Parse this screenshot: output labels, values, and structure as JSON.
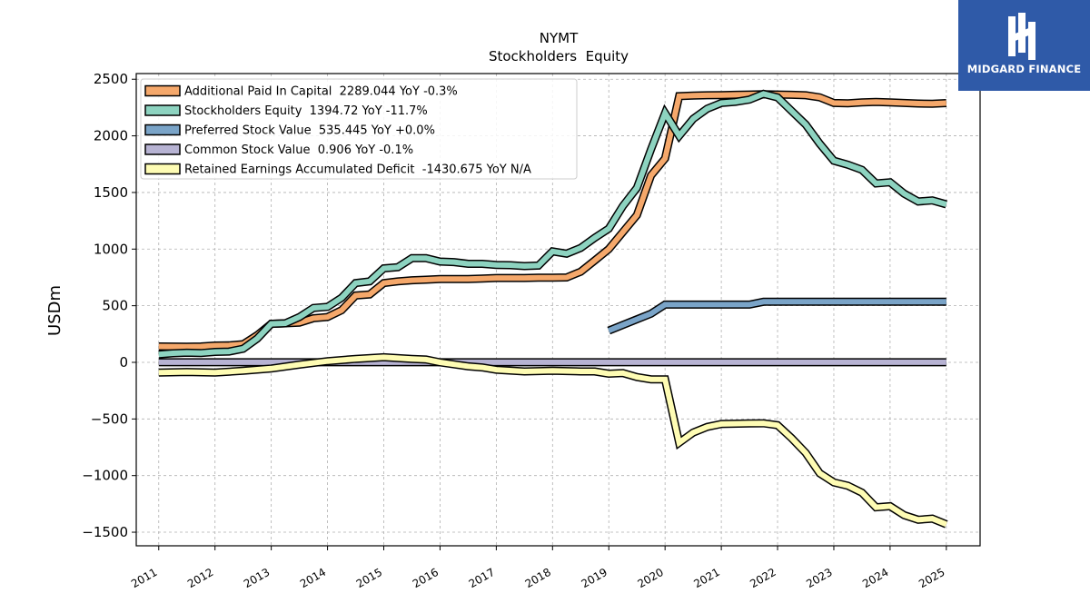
{
  "brand": {
    "name": "MIDGARD FINANCE"
  },
  "chart_data": {
    "type": "line",
    "title": "NYMT",
    "subtitle": "Stockholders  Equity",
    "ylabel": "USDm",
    "xlabel": "",
    "xlim": [
      2010.6,
      2025.6
    ],
    "ylim": [
      -1620,
      2550
    ],
    "yticks": [
      -1500,
      -1000,
      -500,
      0,
      500,
      1000,
      1500,
      2000,
      2500
    ],
    "ytick_labels": [
      "−1500",
      "−1000",
      "−500",
      "0",
      "500",
      "1000",
      "1500",
      "2000",
      "2500"
    ],
    "xticks": [
      2011,
      2012,
      2013,
      2014,
      2015,
      2016,
      2017,
      2018,
      2019,
      2020,
      2021,
      2022,
      2023,
      2024,
      2025
    ],
    "xtick_labels": [
      "2011",
      "2012",
      "2013",
      "2014",
      "2015",
      "2016",
      "2017",
      "2018",
      "2019",
      "2020",
      "2021",
      "2022",
      "2023",
      "2024",
      "2025"
    ],
    "grid": true,
    "legend_position": "top-left",
    "series": [
      {
        "name": "Additional Paid In Capital",
        "legend": "Additional Paid In Capital  2289.044 YoY -0.3%",
        "color": "#f5a86b",
        "points": [
          [
            2011.0,
            140
          ],
          [
            2011.5,
            138
          ],
          [
            2011.75,
            140
          ],
          [
            2012.0,
            148
          ],
          [
            2012.25,
            150
          ],
          [
            2012.5,
            160
          ],
          [
            2012.75,
            240
          ],
          [
            2013.0,
            340
          ],
          [
            2013.25,
            345
          ],
          [
            2013.5,
            350
          ],
          [
            2013.75,
            390
          ],
          [
            2014.0,
            400
          ],
          [
            2014.25,
            460
          ],
          [
            2014.5,
            590
          ],
          [
            2014.75,
            600
          ],
          [
            2015.0,
            700
          ],
          [
            2015.25,
            715
          ],
          [
            2015.5,
            725
          ],
          [
            2015.75,
            730
          ],
          [
            2016.0,
            735
          ],
          [
            2016.5,
            735
          ],
          [
            2016.75,
            740
          ],
          [
            2017.0,
            745
          ],
          [
            2017.25,
            745
          ],
          [
            2017.5,
            745
          ],
          [
            2017.75,
            748
          ],
          [
            2018.0,
            748
          ],
          [
            2018.25,
            750
          ],
          [
            2018.5,
            800
          ],
          [
            2018.75,
            900
          ],
          [
            2019.0,
            1000
          ],
          [
            2019.25,
            1150
          ],
          [
            2019.5,
            1300
          ],
          [
            2019.75,
            1650
          ],
          [
            2020.0,
            1800
          ],
          [
            2020.25,
            2350
          ],
          [
            2020.5,
            2355
          ],
          [
            2020.75,
            2358
          ],
          [
            2021.0,
            2360
          ],
          [
            2021.25,
            2362
          ],
          [
            2021.5,
            2365
          ],
          [
            2021.75,
            2368
          ],
          [
            2022.0,
            2365
          ],
          [
            2022.25,
            2362
          ],
          [
            2022.5,
            2358
          ],
          [
            2022.75,
            2340
          ],
          [
            2023.0,
            2290
          ],
          [
            2023.25,
            2288
          ],
          [
            2023.5,
            2295
          ],
          [
            2023.75,
            2300
          ],
          [
            2024.0,
            2295
          ],
          [
            2024.25,
            2290
          ],
          [
            2024.5,
            2285
          ],
          [
            2024.75,
            2283
          ],
          [
            2025.0,
            2289
          ]
        ]
      },
      {
        "name": "Stockholders Equity",
        "legend": "Stockholders Equity  1394.72 YoY -11.7%",
        "color": "#8dd3c0",
        "points": [
          [
            2011.0,
            70
          ],
          [
            2011.25,
            80
          ],
          [
            2011.5,
            85
          ],
          [
            2011.75,
            82
          ],
          [
            2012.0,
            92
          ],
          [
            2012.25,
            95
          ],
          [
            2012.5,
            120
          ],
          [
            2012.75,
            210
          ],
          [
            2013.0,
            340
          ],
          [
            2013.25,
            345
          ],
          [
            2013.5,
            400
          ],
          [
            2013.75,
            480
          ],
          [
            2014.0,
            490
          ],
          [
            2014.25,
            570
          ],
          [
            2014.5,
            700
          ],
          [
            2014.75,
            715
          ],
          [
            2015.0,
            830
          ],
          [
            2015.25,
            840
          ],
          [
            2015.5,
            920
          ],
          [
            2015.75,
            920
          ],
          [
            2016.0,
            890
          ],
          [
            2016.25,
            885
          ],
          [
            2016.5,
            870
          ],
          [
            2016.75,
            870
          ],
          [
            2017.0,
            860
          ],
          [
            2017.25,
            858
          ],
          [
            2017.5,
            850
          ],
          [
            2017.75,
            855
          ],
          [
            2018.0,
            980
          ],
          [
            2018.25,
            960
          ],
          [
            2018.5,
            1010
          ],
          [
            2018.75,
            1100
          ],
          [
            2019.0,
            1180
          ],
          [
            2019.25,
            1380
          ],
          [
            2019.5,
            1540
          ],
          [
            2019.75,
            1880
          ],
          [
            2020.0,
            2200
          ],
          [
            2020.25,
            2000
          ],
          [
            2020.5,
            2150
          ],
          [
            2020.75,
            2240
          ],
          [
            2021.0,
            2290
          ],
          [
            2021.25,
            2300
          ],
          [
            2021.5,
            2320
          ],
          [
            2021.75,
            2370
          ],
          [
            2022.0,
            2340
          ],
          [
            2022.25,
            2220
          ],
          [
            2022.5,
            2100
          ],
          [
            2022.75,
            1930
          ],
          [
            2023.0,
            1780
          ],
          [
            2023.25,
            1745
          ],
          [
            2023.5,
            1700
          ],
          [
            2023.75,
            1580
          ],
          [
            2024.0,
            1590
          ],
          [
            2024.25,
            1490
          ],
          [
            2024.5,
            1420
          ],
          [
            2024.75,
            1430
          ],
          [
            2025.0,
            1395
          ]
        ]
      },
      {
        "name": "Preferred Stock Value",
        "legend": "Preferred Stock Value  535.445 YoY +0.0%",
        "color": "#7aa4c8",
        "points": [
          [
            2019.0,
            280
          ],
          [
            2019.25,
            330
          ],
          [
            2019.5,
            380
          ],
          [
            2019.75,
            430
          ],
          [
            2020.0,
            510
          ],
          [
            2020.25,
            510
          ],
          [
            2020.5,
            510
          ],
          [
            2020.75,
            510
          ],
          [
            2021.0,
            510
          ],
          [
            2021.25,
            510
          ],
          [
            2021.5,
            510
          ],
          [
            2021.75,
            535
          ],
          [
            2022.0,
            535
          ],
          [
            2022.5,
            535
          ],
          [
            2023.0,
            535
          ],
          [
            2023.5,
            535
          ],
          [
            2024.0,
            535
          ],
          [
            2024.5,
            535
          ],
          [
            2025.0,
            535
          ]
        ]
      },
      {
        "name": "Common Stock Value",
        "legend": "Common Stock Value  0.906 YoY -0.1%",
        "color": "#b7b3d3",
        "points": [
          [
            2011.0,
            1
          ],
          [
            2012.0,
            1
          ],
          [
            2013.0,
            1
          ],
          [
            2014.0,
            1
          ],
          [
            2015.0,
            1
          ],
          [
            2016.0,
            1
          ],
          [
            2017.0,
            1
          ],
          [
            2018.0,
            1
          ],
          [
            2019.0,
            1
          ],
          [
            2020.0,
            1
          ],
          [
            2021.0,
            1
          ],
          [
            2022.0,
            1
          ],
          [
            2023.0,
            1
          ],
          [
            2024.0,
            1
          ],
          [
            2025.0,
            1
          ]
        ]
      },
      {
        "name": "Retained Earnings Accumulated Deficit",
        "legend": "Retained Earnings Accumulated Deficit  -1430.675 YoY N/A",
        "color": "#fefcb4",
        "points": [
          [
            2011.0,
            -90
          ],
          [
            2011.5,
            -85
          ],
          [
            2012.0,
            -90
          ],
          [
            2012.5,
            -75
          ],
          [
            2013.0,
            -55
          ],
          [
            2013.5,
            -20
          ],
          [
            2014.0,
            10
          ],
          [
            2014.5,
            30
          ],
          [
            2015.0,
            45
          ],
          [
            2015.5,
            30
          ],
          [
            2015.75,
            25
          ],
          [
            2016.0,
            0
          ],
          [
            2016.5,
            -35
          ],
          [
            2016.75,
            -45
          ],
          [
            2017.0,
            -65
          ],
          [
            2017.5,
            -80
          ],
          [
            2018.0,
            -75
          ],
          [
            2018.5,
            -80
          ],
          [
            2018.75,
            -80
          ],
          [
            2019.0,
            -100
          ],
          [
            2019.25,
            -95
          ],
          [
            2019.5,
            -130
          ],
          [
            2019.75,
            -150
          ],
          [
            2020.0,
            -150
          ],
          [
            2020.25,
            -710
          ],
          [
            2020.5,
            -620
          ],
          [
            2020.75,
            -570
          ],
          [
            2021.0,
            -545
          ],
          [
            2021.5,
            -540
          ],
          [
            2021.75,
            -538
          ],
          [
            2022.0,
            -555
          ],
          [
            2022.25,
            -670
          ],
          [
            2022.5,
            -800
          ],
          [
            2022.75,
            -980
          ],
          [
            2023.0,
            -1060
          ],
          [
            2023.25,
            -1090
          ],
          [
            2023.5,
            -1150
          ],
          [
            2023.75,
            -1280
          ],
          [
            2024.0,
            -1270
          ],
          [
            2024.25,
            -1350
          ],
          [
            2024.5,
            -1390
          ],
          [
            2024.75,
            -1380
          ],
          [
            2025.0,
            -1430
          ]
        ]
      }
    ]
  }
}
